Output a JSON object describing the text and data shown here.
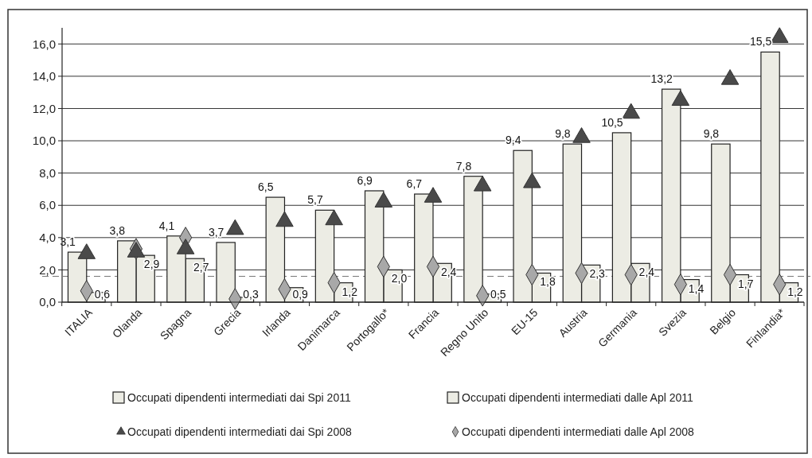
{
  "chart_data": {
    "type": "bar",
    "categories": [
      "ITALIA",
      "Olanda",
      "Spagna",
      "Grecia",
      "Irlanda",
      "Danimarca",
      "Portogallo*",
      "Francia",
      "Regno Unito",
      "EU-15",
      "Austria",
      "Germania",
      "Svezia",
      "Belgio",
      "Finlandia*"
    ],
    "series": [
      {
        "name": "Occupati dipendenti  intermediati dai Spi 2011",
        "color": "#ececE4",
        "values": [
          3.1,
          3.8,
          4.1,
          3.7,
          6.5,
          5.7,
          6.9,
          6.7,
          7.8,
          9.4,
          9.8,
          10.5,
          13.2,
          9.8,
          15.5
        ],
        "value_labels": [
          "3,1",
          "3,8",
          "4,1",
          "3,7",
          "6,5",
          "5,7",
          "6,9",
          "6,7",
          "7,8",
          "9,4",
          "9,8",
          "10,5",
          "13,2",
          "9,8",
          "15,5"
        ]
      },
      {
        "name": "Occupati dipendenti  intermediati dalle Apl 2011",
        "color": "#ececE4",
        "values": [
          0.6,
          2.9,
          2.7,
          0.3,
          0.9,
          1.2,
          2.0,
          2.4,
          0.5,
          1.8,
          2.3,
          2.4,
          1.4,
          1.7,
          1.2
        ],
        "value_labels": [
          "0,6",
          "2,9",
          "2,7",
          "0,3",
          "0,9",
          "1,2",
          "2,0",
          "2,4",
          "0,5",
          "1,8",
          "2,3",
          "2,4",
          "1,4",
          "1,7",
          "1,2"
        ]
      },
      {
        "name": "Occupati dipendenti  intermediati dai Spi 2008",
        "type": "scatter",
        "marker": "triangle",
        "color": "#4a4a4a",
        "values": [
          3.0,
          3.1,
          3.3,
          4.5,
          5.0,
          5.1,
          6.2,
          6.5,
          7.2,
          7.4,
          10.2,
          11.7,
          12.5,
          13.8,
          16.4
        ]
      },
      {
        "name": "Occupati dipendenti  intermediati dalle Apl 2008",
        "type": "scatter",
        "marker": "diamond",
        "color": "#a8a8a8",
        "values": [
          0.7,
          3.3,
          4.0,
          0.2,
          0.8,
          1.2,
          2.2,
          2.2,
          0.4,
          1.7,
          1.8,
          1.7,
          1.1,
          1.7,
          1.1
        ]
      }
    ],
    "ylim": [
      0,
      17
    ],
    "yticks": [
      {
        "value": 0,
        "label": "0,0"
      },
      {
        "value": 2,
        "label": "2,0"
      },
      {
        "value": 4,
        "label": "4,0"
      },
      {
        "value": 6,
        "label": "6,0"
      },
      {
        "value": 8,
        "label": "8,0"
      },
      {
        "value": 10,
        "label": "10,0"
      },
      {
        "value": 12,
        "label": "12,0"
      },
      {
        "value": 14,
        "label": "14,0"
      },
      {
        "value": 16,
        "label": "16,0"
      }
    ],
    "ref_lines": [
      {
        "axis": "y",
        "value": 1.6,
        "line_style": "dashed",
        "color": "#777777"
      }
    ],
    "grid": "y",
    "legend": "bottom"
  }
}
